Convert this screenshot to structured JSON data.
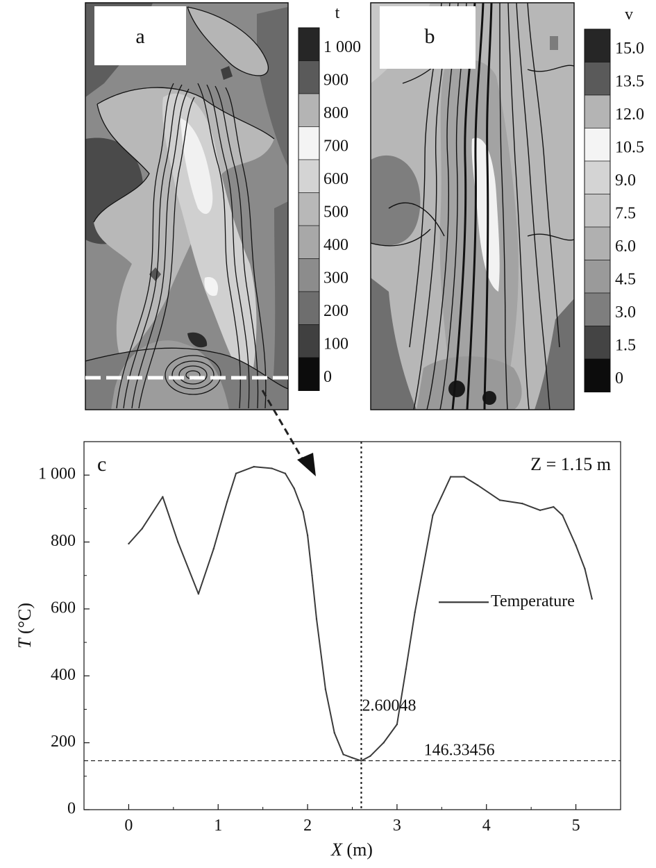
{
  "panels": {
    "a": {
      "label": "a",
      "colorbar": {
        "title": "t",
        "levels": [
          "1 000",
          "900",
          "800",
          "700",
          "600",
          "500",
          "400",
          "300",
          "200",
          "100",
          "0"
        ],
        "colors": [
          "#262626",
          "#5a5a5a",
          "#b4b4b4",
          "#f4f4f4",
          "#d4d4d4",
          "#b8b8b8",
          "#a8a8a8",
          "#8c8c8c",
          "#6e6e6e",
          "#404040",
          "#0c0c0c"
        ]
      }
    },
    "b": {
      "label": "b",
      "colorbar": {
        "title": "v",
        "levels": [
          "15.0",
          "13.5",
          "12.0",
          "10.5",
          "9.0",
          "7.5",
          "6.0",
          "4.5",
          "3.0",
          "1.5",
          "0"
        ],
        "colors": [
          "#262626",
          "#5a5a5a",
          "#b4b4b4",
          "#f4f4f4",
          "#d4d4d4",
          "#c4c4c4",
          "#b0b0b0",
          "#9a9a9a",
          "#7e7e7e",
          "#444444",
          "#0c0c0c"
        ]
      }
    }
  },
  "chart_data": {
    "type": "line",
    "panel_label": "c",
    "annotation_z": "Z = 1.15 m",
    "xlabel_var": "X",
    "xlabel_unit": " (m)",
    "ylabel_var": "T",
    "ylabel_unit": " (°C)",
    "xlim": [
      -0.5,
      5.5
    ],
    "ylim": [
      0,
      1100
    ],
    "xticks": [
      0,
      1,
      2,
      3,
      4,
      5
    ],
    "yticks": [
      0,
      200,
      400,
      600,
      800,
      1000
    ],
    "ytick_labels": [
      "0",
      "200",
      "400",
      "600",
      "800",
      "1 000"
    ],
    "series": [
      {
        "name": "Temperature",
        "x": [
          0.0,
          0.15,
          0.38,
          0.55,
          0.78,
          0.95,
          1.1,
          1.2,
          1.4,
          1.6,
          1.75,
          1.85,
          1.95,
          2.0,
          2.05,
          2.1,
          2.2,
          2.3,
          2.4,
          2.5,
          2.6,
          2.7,
          2.85,
          3.0,
          3.1,
          3.2,
          3.4,
          3.6,
          3.75,
          3.9,
          4.15,
          4.4,
          4.6,
          4.75,
          4.85,
          5.0,
          5.1,
          5.18
        ],
        "y": [
          795,
          840,
          935,
          800,
          645,
          780,
          920,
          1005,
          1025,
          1020,
          1005,
          960,
          890,
          820,
          700,
          570,
          360,
          230,
          165,
          155,
          146,
          160,
          200,
          255,
          420,
          590,
          880,
          995,
          995,
          970,
          925,
          915,
          895,
          905,
          880,
          790,
          720,
          630
        ]
      }
    ],
    "marker": {
      "x_label": "2.60048",
      "y_label": "146.33456",
      "x": 2.60048,
      "y": 146.33456
    }
  }
}
